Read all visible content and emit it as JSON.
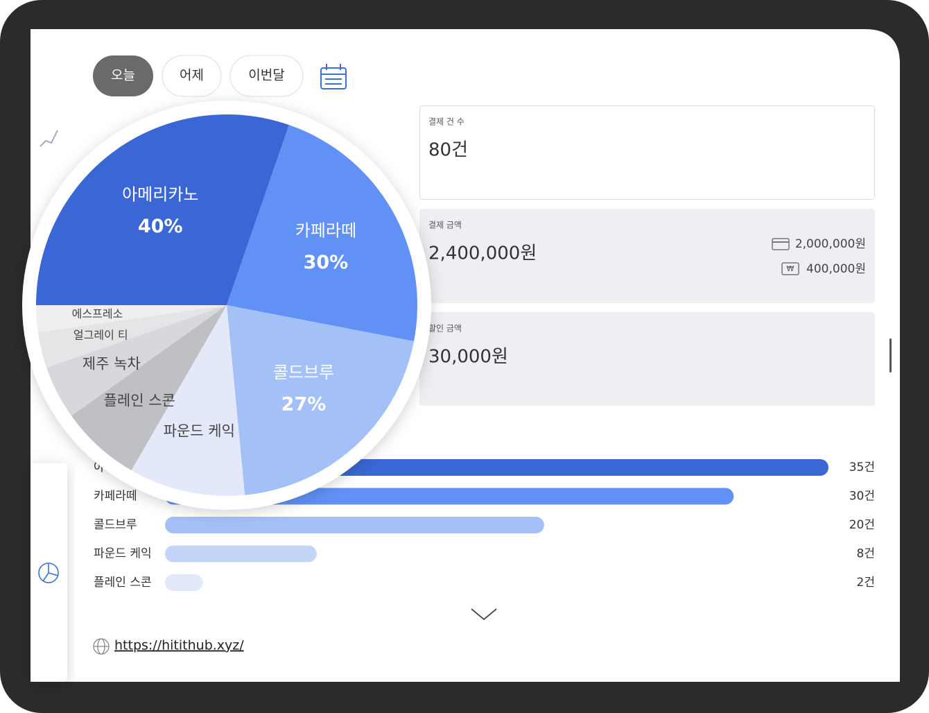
{
  "tabs": [
    "오늘",
    "어제",
    "이번달"
  ],
  "stats": [
    {
      "label": "결제 건 수",
      "value": "80건"
    },
    {
      "label": "결제 금액",
      "value": "2,400,000원",
      "card": "2,000,000원",
      "cash": "400,000원"
    },
    {
      "label": "할인 금액",
      "value": "30,000원"
    }
  ],
  "url": "https://hitithub.xyz/",
  "chart_data": [
    {
      "type": "pie",
      "categories": [
        "아메리카노",
        "카페라떼",
        "콜드브루",
        "파운드 케익",
        "플레인 스콘",
        "제주 녹차",
        "얼그레이 티",
        "에스프레소"
      ],
      "values": [
        40,
        30,
        27,
        13,
        9,
        6,
        4,
        3
      ],
      "value_labels": [
        "40%",
        "30%",
        "27%",
        null,
        null,
        null,
        null,
        null
      ],
      "colors": [
        "#3b67d6",
        "#6191f5",
        "#a3c0f7",
        "#e3e9f9",
        "#bfc0c3",
        "#d7d8db",
        "#e5e5e8",
        "#efeff1"
      ]
    },
    {
      "type": "bar",
      "orientation": "horizontal",
      "categories": [
        "아메리카노",
        "카페라떼",
        "콜드브루",
        "파운드 케익",
        "플레인 스콘"
      ],
      "values": [
        35,
        30,
        20,
        8,
        2
      ],
      "value_labels": [
        "35건",
        "30건",
        "20건",
        "8건",
        "2건"
      ],
      "colors": [
        "#3b67d6",
        "#6191f5",
        "#a3c0f7",
        "#c2d4f7",
        "#e2e9fa"
      ],
      "xlim": [
        0,
        35
      ]
    }
  ]
}
